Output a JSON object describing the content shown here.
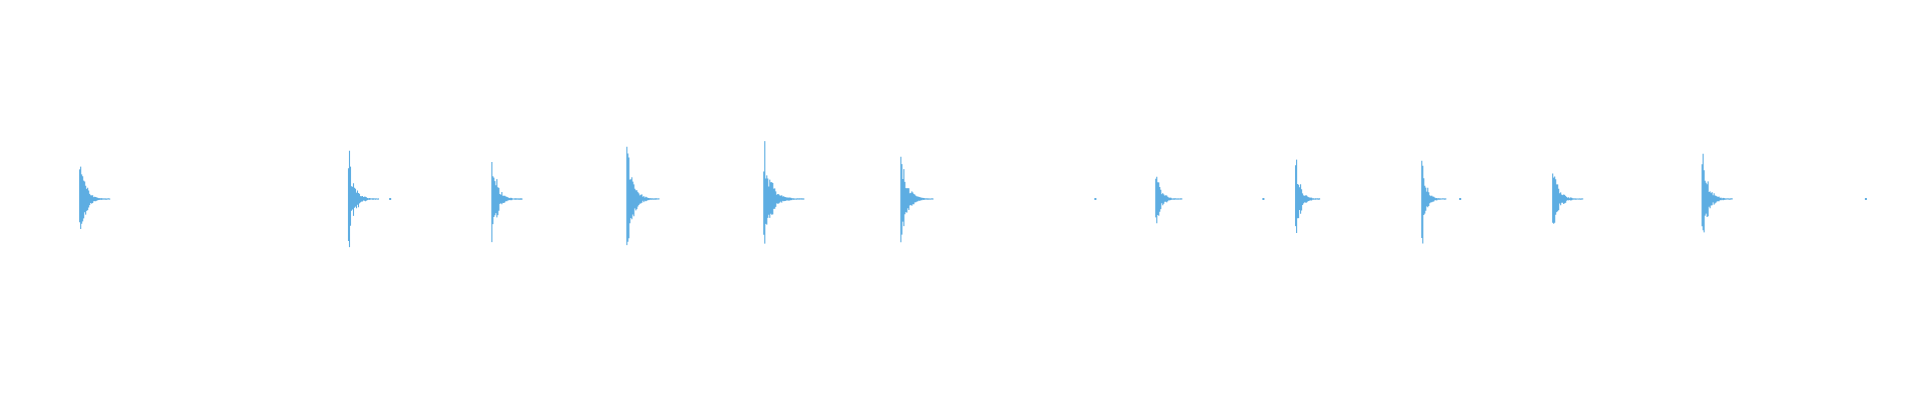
{
  "chart_data": {
    "type": "waveform",
    "color": "#5dade2",
    "background": "#ffffff",
    "grid": false,
    "axes": false,
    "amplitude_range": [
      -1,
      1
    ],
    "time_range": [
      0,
      1
    ],
    "bursts": [
      {
        "onset": 0.0415,
        "peak": 0.23,
        "decay": 0.016
      },
      {
        "onset": 0.1815,
        "peak": 0.22,
        "decay": 0.016
      },
      {
        "onset": 0.2562,
        "peak": 0.22,
        "decay": 0.016
      },
      {
        "onset": 0.3265,
        "peak": 0.28,
        "decay": 0.017
      },
      {
        "onset": 0.3978,
        "peak": 0.26,
        "decay": 0.021
      },
      {
        "onset": 0.4692,
        "peak": 0.25,
        "decay": 0.017
      },
      {
        "onset": 0.602,
        "peak": 0.16,
        "decay": 0.014
      },
      {
        "onset": 0.6748,
        "peak": 0.22,
        "decay": 0.013
      },
      {
        "onset": 0.7405,
        "peak": 0.21,
        "decay": 0.013
      },
      {
        "onset": 0.8087,
        "peak": 0.18,
        "decay": 0.016
      },
      {
        "onset": 0.8865,
        "peak": 0.24,
        "decay": 0.016
      }
    ],
    "clicks": [
      0.2027,
      0.57,
      0.6575,
      0.76,
      0.9713
    ]
  }
}
